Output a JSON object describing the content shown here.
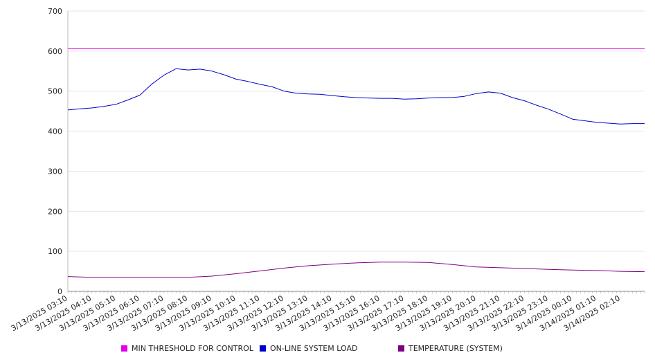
{
  "chart_data": {
    "type": "line",
    "title": "",
    "xlabel": "",
    "ylabel": "",
    "ylim": [
      0,
      700
    ],
    "yticks": [
      0,
      100,
      200,
      300,
      400,
      500,
      600,
      700
    ],
    "grid": true,
    "legend_position": "bottom",
    "x_tick_labels": [
      "3/13/2025 03:10",
      "3/13/2025 04:10",
      "3/13/2025 05:10",
      "3/13/2025 06:10",
      "3/13/2025 07:10",
      "3/13/2025 08:10",
      "3/13/2025 09:10",
      "3/13/2025 10:10",
      "3/13/2025 11:10",
      "3/13/2025 12:10",
      "3/13/2025 13:10",
      "3/13/2025 14:10",
      "3/13/2025 15:10",
      "3/13/2025 16:10",
      "3/13/2025 17:10",
      "3/13/2025 18:10",
      "3/13/2025 19:10",
      "3/13/2025 20:10",
      "3/13/2025 21:10",
      "3/13/2025 22:10",
      "3/13/2025 23:10",
      "3/14/2025 00:10",
      "3/14/2025 01:10",
      "3/14/2025 02:10"
    ],
    "x_start": "3/13/2025 03:10",
    "x_end": "3/14/2025 03:10",
    "series": [
      {
        "name": "MIN THRESHOLD FOR CONTROL",
        "color": "#e600e6",
        "points": [
          [
            "3/13/2025 03:10",
            606
          ],
          [
            "3/14/2025 03:10",
            606
          ]
        ]
      },
      {
        "name": "ON-LINE SYSTEM LOAD",
        "color": "#0000cc",
        "points": [
          [
            "3/13/2025 03:10",
            453
          ],
          [
            "3/13/2025 03:40",
            456
          ],
          [
            "3/13/2025 04:10",
            458
          ],
          [
            "3/13/2025 04:40",
            462
          ],
          [
            "3/13/2025 05:10",
            467
          ],
          [
            "3/13/2025 05:40",
            478
          ],
          [
            "3/13/2025 06:10",
            490
          ],
          [
            "3/13/2025 06:40",
            518
          ],
          [
            "3/13/2025 07:10",
            540
          ],
          [
            "3/13/2025 07:40",
            556
          ],
          [
            "3/13/2025 08:10",
            553
          ],
          [
            "3/13/2025 08:40",
            555
          ],
          [
            "3/13/2025 09:10",
            550
          ],
          [
            "3/13/2025 09:40",
            541
          ],
          [
            "3/13/2025 10:10",
            530
          ],
          [
            "3/13/2025 10:40",
            524
          ],
          [
            "3/13/2025 11:10",
            517
          ],
          [
            "3/13/2025 11:40",
            511
          ],
          [
            "3/13/2025 12:10",
            500
          ],
          [
            "3/13/2025 12:40",
            495
          ],
          [
            "3/13/2025 13:10",
            493
          ],
          [
            "3/13/2025 13:40",
            492
          ],
          [
            "3/13/2025 14:10",
            489
          ],
          [
            "3/13/2025 14:40",
            486
          ],
          [
            "3/13/2025 15:10",
            484
          ],
          [
            "3/13/2025 15:40",
            483
          ],
          [
            "3/13/2025 16:10",
            482
          ],
          [
            "3/13/2025 16:40",
            482
          ],
          [
            "3/13/2025 17:10",
            480
          ],
          [
            "3/13/2025 17:40",
            481
          ],
          [
            "3/13/2025 18:10",
            483
          ],
          [
            "3/13/2025 18:40",
            484
          ],
          [
            "3/13/2025 19:10",
            484
          ],
          [
            "3/13/2025 19:40",
            487
          ],
          [
            "3/13/2025 20:10",
            494
          ],
          [
            "3/13/2025 20:40",
            498
          ],
          [
            "3/13/2025 21:10",
            495
          ],
          [
            "3/13/2025 21:40",
            484
          ],
          [
            "3/13/2025 22:10",
            476
          ],
          [
            "3/13/2025 22:40",
            465
          ],
          [
            "3/13/2025 23:10",
            455
          ],
          [
            "3/13/2025 23:40",
            443
          ],
          [
            "3/14/2025 00:10",
            430
          ],
          [
            "3/14/2025 00:40",
            426
          ],
          [
            "3/14/2025 01:10",
            422
          ],
          [
            "3/14/2025 01:40",
            420
          ],
          [
            "3/14/2025 02:10",
            418
          ],
          [
            "3/14/2025 02:40",
            419
          ],
          [
            "3/14/2025 03:10",
            419
          ]
        ]
      },
      {
        "name": "TEMPERATURE (SYSTEM)",
        "color": "#800080",
        "points": [
          [
            "3/13/2025 03:10",
            37
          ],
          [
            "3/13/2025 04:10",
            35
          ],
          [
            "3/13/2025 05:10",
            35
          ],
          [
            "3/13/2025 06:10",
            35
          ],
          [
            "3/13/2025 07:10",
            35
          ],
          [
            "3/13/2025 08:10",
            35
          ],
          [
            "3/13/2025 09:10",
            38
          ],
          [
            "3/13/2025 10:10",
            44
          ],
          [
            "3/13/2025 11:10",
            51
          ],
          [
            "3/13/2025 12:10",
            58
          ],
          [
            "3/13/2025 13:10",
            64
          ],
          [
            "3/13/2025 14:10",
            68
          ],
          [
            "3/13/2025 15:10",
            71
          ],
          [
            "3/13/2025 16:10",
            73
          ],
          [
            "3/13/2025 17:10",
            73
          ],
          [
            "3/13/2025 18:10",
            72
          ],
          [
            "3/13/2025 19:10",
            67
          ],
          [
            "3/13/2025 20:10",
            61
          ],
          [
            "3/13/2025 21:10",
            59
          ],
          [
            "3/13/2025 22:10",
            57
          ],
          [
            "3/13/2025 23:10",
            55
          ],
          [
            "3/14/2025 00:10",
            53
          ],
          [
            "3/14/2025 01:10",
            52
          ],
          [
            "3/14/2025 02:10",
            50
          ],
          [
            "3/14/2025 03:10",
            49
          ]
        ]
      }
    ]
  }
}
